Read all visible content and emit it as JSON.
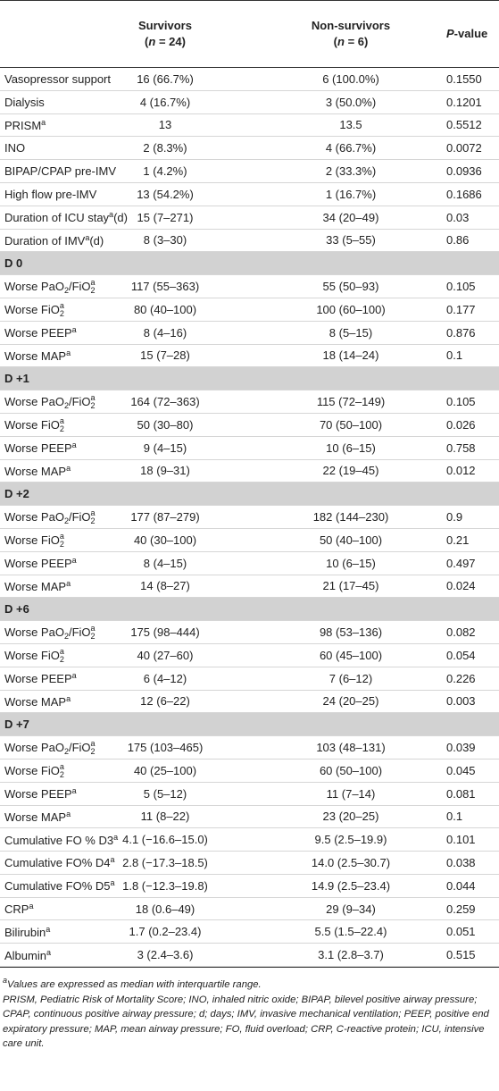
{
  "header": {
    "columns": [
      {
        "lines": [
          [
            {
              "text": "Survivors"
            }
          ],
          [
            {
              "text": "("
            },
            {
              "text": "n",
              "style": "italic"
            },
            {
              "text": " = 24)"
            }
          ]
        ]
      },
      {
        "lines": [
          [
            {
              "text": "Non-survivors"
            }
          ],
          [
            {
              "text": "("
            },
            {
              "text": "n",
              "style": "italic"
            },
            {
              "text": " = 6)"
            }
          ]
        ]
      },
      {
        "lines": [
          [
            {
              "text": "P",
              "style": "italic"
            },
            {
              "text": "-value"
            }
          ]
        ]
      }
    ]
  },
  "table": {
    "rows": [
      {
        "label": [
          {
            "text": "Vasopressor support"
          }
        ],
        "cells": [
          "16 (66.7%)",
          "6 (100.0%)",
          "0.1550"
        ]
      },
      {
        "label": [
          {
            "text": "Dialysis"
          }
        ],
        "cells": [
          "4 (16.7%)",
          "3 (50.0%)",
          "0.1201"
        ]
      },
      {
        "label": [
          {
            "text": "PRISM"
          },
          {
            "text": "a",
            "style": "sup"
          }
        ],
        "cells": [
          "13",
          "13.5",
          "0.5512"
        ]
      },
      {
        "label": [
          {
            "text": "INO"
          }
        ],
        "cells": [
          "2 (8.3%)",
          "4 (66.7%)",
          "0.0072"
        ]
      },
      {
        "label": [
          {
            "text": "BIPAP/CPAP pre-IMV"
          }
        ],
        "cells": [
          "1 (4.2%)",
          "2 (33.3%)",
          "0.0936"
        ]
      },
      {
        "label": [
          {
            "text": "High flow pre-IMV"
          }
        ],
        "cells": [
          "13 (54.2%)",
          "1 (16.7%)",
          "0.1686"
        ]
      },
      {
        "label": [
          {
            "text": "Duration of ICU stay"
          },
          {
            "text": "a",
            "style": "sup"
          },
          {
            "text": "(d)"
          }
        ],
        "cells": [
          "15 (7–271)",
          "34 (20–49)",
          "0.03"
        ]
      },
      {
        "label": [
          {
            "text": "Duration of IMV"
          },
          {
            "text": "a",
            "style": "sup"
          },
          {
            "text": "(d)"
          }
        ],
        "cells": [
          "8 (3–30)",
          "33 (5–55)",
          "0.86"
        ]
      },
      {
        "section": "D 0"
      },
      {
        "label": [
          {
            "text": "Worse PaO"
          },
          {
            "text": "2",
            "style": "sub"
          },
          {
            "text": "/FiO"
          },
          {
            "text": "2",
            "style": "sub"
          },
          {
            "text": "a",
            "style": "over"
          }
        ],
        "cells": [
          "117 (55–363)",
          "55 (50–93)",
          "0.105"
        ]
      },
      {
        "label": [
          {
            "text": "Worse FiO"
          },
          {
            "text": "2",
            "style": "sub"
          },
          {
            "text": "a",
            "style": "over"
          }
        ],
        "cells": [
          "80 (40–100)",
          "100 (60–100)",
          "0.177"
        ]
      },
      {
        "label": [
          {
            "text": "Worse PEEP"
          },
          {
            "text": "a",
            "style": "sup"
          }
        ],
        "cells": [
          "8 (4–16)",
          "8 (5–15)",
          "0.876"
        ]
      },
      {
        "label": [
          {
            "text": "Worse MAP"
          },
          {
            "text": "a",
            "style": "sup"
          }
        ],
        "cells": [
          "15 (7–28)",
          "18 (14–24)",
          "0.1"
        ]
      },
      {
        "section": "D +1"
      },
      {
        "label": [
          {
            "text": "Worse PaO"
          },
          {
            "text": "2",
            "style": "sub"
          },
          {
            "text": "/FiO"
          },
          {
            "text": "2",
            "style": "sub"
          },
          {
            "text": "a",
            "style": "over"
          }
        ],
        "cells": [
          "164 (72–363)",
          "115 (72–149)",
          "0.105"
        ]
      },
      {
        "label": [
          {
            "text": "Worse FiO"
          },
          {
            "text": "2",
            "style": "sub"
          },
          {
            "text": "a",
            "style": "over"
          }
        ],
        "cells": [
          "50 (30–80)",
          "70 (50–100)",
          "0.026"
        ]
      },
      {
        "label": [
          {
            "text": "Worse PEEP"
          },
          {
            "text": "a",
            "style": "sup"
          }
        ],
        "cells": [
          "9 (4–15)",
          "10 (6–15)",
          "0.758"
        ]
      },
      {
        "label": [
          {
            "text": "Worse MAP"
          },
          {
            "text": "a",
            "style": "sup"
          }
        ],
        "cells": [
          "18 (9–31)",
          "22 (19–45)",
          "0.012"
        ]
      },
      {
        "section": "D +2"
      },
      {
        "label": [
          {
            "text": "Worse PaO"
          },
          {
            "text": "2",
            "style": "sub"
          },
          {
            "text": "/FiO"
          },
          {
            "text": "2",
            "style": "sub"
          },
          {
            "text": "a",
            "style": "over"
          }
        ],
        "cells": [
          "177 (87–279)",
          "182 (144–230)",
          "0.9"
        ]
      },
      {
        "label": [
          {
            "text": "Worse FiO"
          },
          {
            "text": "2",
            "style": "sub"
          },
          {
            "text": "a",
            "style": "over"
          }
        ],
        "cells": [
          "40 (30–100)",
          "50 (40–100)",
          "0.21"
        ]
      },
      {
        "label": [
          {
            "text": "Worse PEEP"
          },
          {
            "text": "a",
            "style": "sup"
          }
        ],
        "cells": [
          "8 (4–15)",
          "10 (6–15)",
          "0.497"
        ]
      },
      {
        "label": [
          {
            "text": "Worse MAP"
          },
          {
            "text": "a",
            "style": "sup"
          }
        ],
        "cells": [
          "14 (8–27)",
          "21 (17–45)",
          "0.024"
        ]
      },
      {
        "section": "D +6"
      },
      {
        "label": [
          {
            "text": "Worse PaO"
          },
          {
            "text": "2",
            "style": "sub"
          },
          {
            "text": "/FiO"
          },
          {
            "text": "2",
            "style": "sub"
          },
          {
            "text": "a",
            "style": "over"
          }
        ],
        "cells": [
          "175 (98–444)",
          "98 (53–136)",
          "0.082"
        ]
      },
      {
        "label": [
          {
            "text": "Worse FiO"
          },
          {
            "text": "2",
            "style": "sub"
          },
          {
            "text": "a",
            "style": "over"
          }
        ],
        "cells": [
          "40 (27–60)",
          "60 (45–100)",
          "0.054"
        ]
      },
      {
        "label": [
          {
            "text": "Worse PEEP"
          },
          {
            "text": "a",
            "style": "sup"
          }
        ],
        "cells": [
          "6 (4–12)",
          "7 (6–12)",
          "0.226"
        ]
      },
      {
        "label": [
          {
            "text": "Worse MAP"
          },
          {
            "text": "a",
            "style": "sup"
          }
        ],
        "cells": [
          "12 (6–22)",
          "24 (20–25)",
          "0.003"
        ]
      },
      {
        "section": "D +7"
      },
      {
        "label": [
          {
            "text": "Worse PaO"
          },
          {
            "text": "2",
            "style": "sub"
          },
          {
            "text": "/FiO"
          },
          {
            "text": "2",
            "style": "sub"
          },
          {
            "text": "a",
            "style": "over"
          }
        ],
        "cells": [
          "175 (103–465)",
          "103 (48–131)",
          "0.039"
        ]
      },
      {
        "label": [
          {
            "text": "Worse FiO"
          },
          {
            "text": "2",
            "style": "sub"
          },
          {
            "text": "a",
            "style": "over"
          }
        ],
        "cells": [
          "40 (25–100)",
          "60 (50–100)",
          "0.045"
        ]
      },
      {
        "label": [
          {
            "text": "Worse PEEP"
          },
          {
            "text": "a",
            "style": "sup"
          }
        ],
        "cells": [
          "5 (5–12)",
          "11 (7–14)",
          "0.081"
        ]
      },
      {
        "label": [
          {
            "text": "Worse MAP"
          },
          {
            "text": "a",
            "style": "sup"
          }
        ],
        "cells": [
          "11 (8–22)",
          "23 (20–25)",
          "0.1"
        ]
      },
      {
        "label": [
          {
            "text": "Cumulative FO % D3"
          },
          {
            "text": "a",
            "style": "sup"
          }
        ],
        "cells": [
          "4.1 (−16.6–15.0)",
          "9.5 (2.5–19.9)",
          "0.101"
        ]
      },
      {
        "label": [
          {
            "text": "Cumulative FO% D4"
          },
          {
            "text": "a",
            "style": "sup"
          }
        ],
        "cells": [
          "2.8 (−17.3–18.5)",
          "14.0 (2.5–30.7)",
          "0.038"
        ]
      },
      {
        "label": [
          {
            "text": "Cumulative FO% D5"
          },
          {
            "text": "a",
            "style": "sup"
          }
        ],
        "cells": [
          "1.8 (−12.3–19.8)",
          "14.9 (2.5–23.4)",
          "0.044"
        ]
      },
      {
        "label": [
          {
            "text": "CRP"
          },
          {
            "text": "a",
            "style": "sup"
          }
        ],
        "cells": [
          "18 (0.6–49)",
          "29 (9–34)",
          "0.259"
        ]
      },
      {
        "label": [
          {
            "text": "Bilirubin"
          },
          {
            "text": "a",
            "style": "sup"
          }
        ],
        "cells": [
          "1.7 (0.2–23.4)",
          "5.5 (1.5–22.4)",
          "0.051"
        ]
      },
      {
        "label": [
          {
            "text": "Albumin"
          },
          {
            "text": "a",
            "style": "sup"
          }
        ],
        "cells": [
          "3 (2.4–3.6)",
          "3.1 (2.8–3.7)",
          "0.515"
        ]
      }
    ]
  },
  "footnotes": [
    [
      {
        "text": "a",
        "style": "sup"
      },
      {
        "text": "Values are expressed as median with interquartile range."
      }
    ],
    [
      {
        "text": "PRISM, Pediatric Risk of Mortality Score; INO, inhaled nitric oxide; BIPAP, bilevel positive airway pressure; CPAP, continuous positive airway pressure; d; days; IMV, invasive mechanical ventilation; PEEP, positive end expiratory pressure; MAP, mean airway pressure; FO, fluid overload; CRP, C-reactive protein; ICU, intensive care unit."
      }
    ]
  ]
}
